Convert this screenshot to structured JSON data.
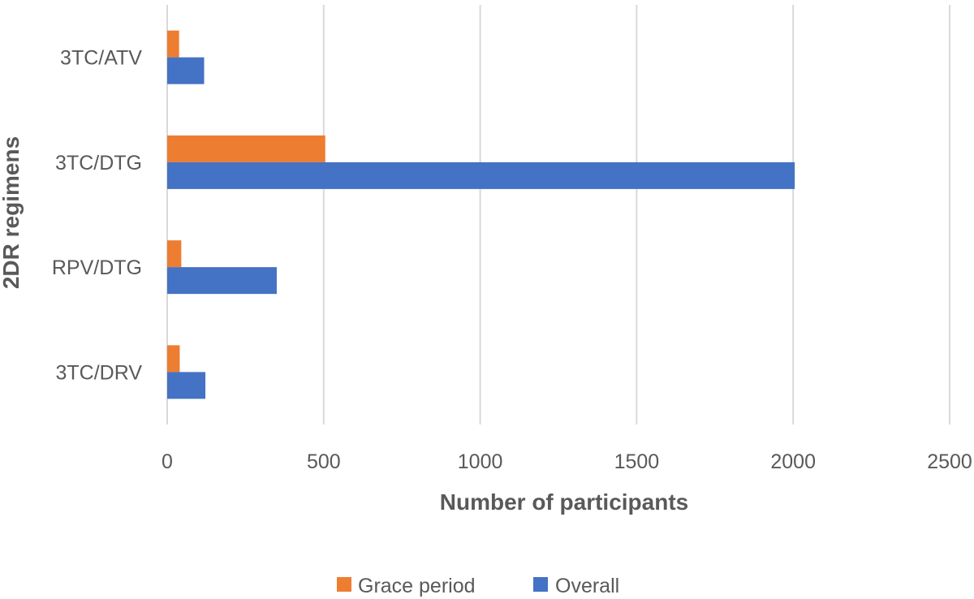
{
  "chart_data": {
    "type": "bar",
    "orientation": "horizontal",
    "categories": [
      "3TC/ATV",
      "3TC/DTG",
      "RPV/DTG",
      "3TC/DRV"
    ],
    "series": [
      {
        "name": "Grace period",
        "color": "#ED7D31",
        "values": [
          38,
          505,
          45,
          40
        ]
      },
      {
        "name": "Overall",
        "color": "#4472C4",
        "values": [
          118,
          2005,
          350,
          122
        ]
      }
    ],
    "xlabel": "Number of participants",
    "ylabel": "2DR regimens",
    "xlim": [
      0,
      2500
    ],
    "xticks": [
      0,
      500,
      1000,
      1500,
      2000,
      2500
    ],
    "grid": "vertical",
    "legend": "bottom"
  }
}
